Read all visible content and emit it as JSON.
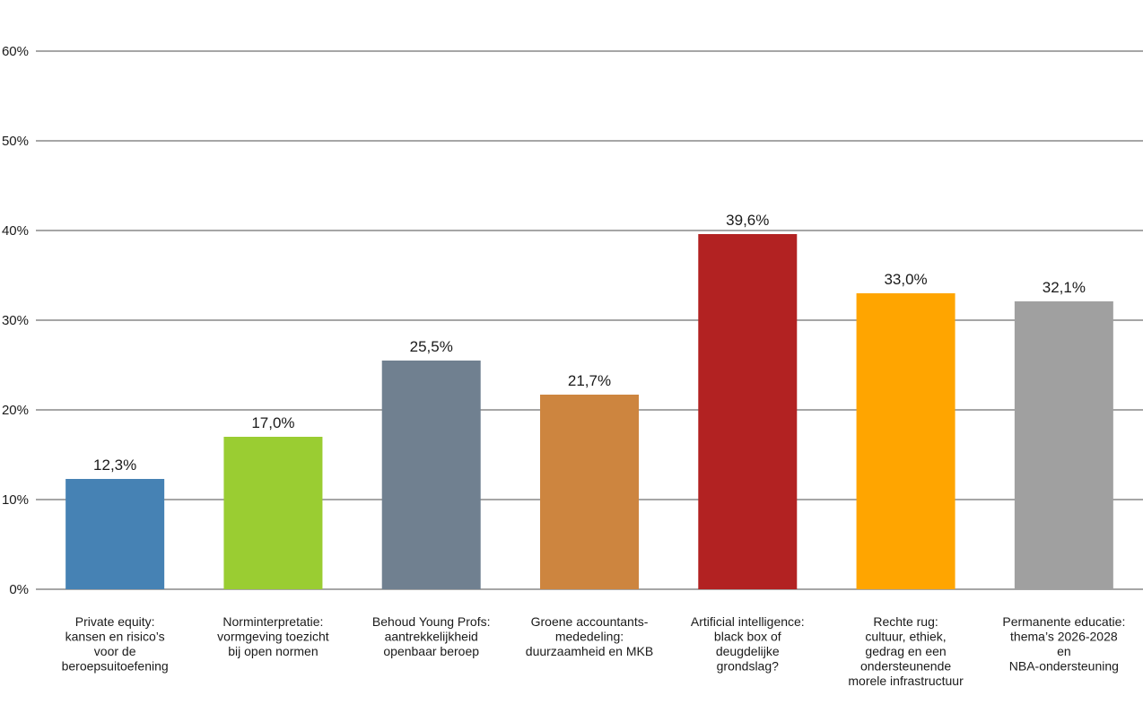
{
  "chart_data": {
    "type": "bar",
    "title": "",
    "xlabel": "",
    "ylabel": "",
    "ylim": [
      0,
      60
    ],
    "yticks": [
      "0%",
      "10%",
      "20%",
      "30%",
      "40%",
      "50%",
      "60%"
    ],
    "grid": true,
    "categories": [
      [
        "Private equity:",
        "kansen en risico’s",
        "voor de",
        "beroepsuitoefening"
      ],
      [
        "Norminterpretatie:",
        "vormgeving toezicht",
        "bij open normen"
      ],
      [
        "Behoud Young Profs:",
        "aantrekkelijkheid",
        "openbaar beroep"
      ],
      [
        "Groene accountants-",
        "mededeling:",
        "duurzaamheid en MKB"
      ],
      [
        "Artificial intelligence:",
        "black box of",
        "deugdelijke",
        "grondslag?"
      ],
      [
        "Rechte rug:",
        "cultuur, ethiek,",
        "gedrag en een",
        "ondersteunende",
        "morele infrastructuur"
      ],
      [
        "Permanente educatie:",
        "thema’s 2026-2028",
        "en",
        "NBA-ondersteuning"
      ]
    ],
    "values": [
      12.3,
      17.0,
      25.5,
      21.7,
      39.6,
      33.0,
      32.1
    ],
    "value_labels": [
      "12,3%",
      "17,0%",
      "25,5%",
      "21,7%",
      "39,6%",
      "33,0%",
      "32,1%"
    ],
    "colors": [
      "#4682b4",
      "#9acd32",
      "#708090",
      "#cd853f",
      "#b22222",
      "#ffa500",
      "#a0a0a0"
    ]
  }
}
